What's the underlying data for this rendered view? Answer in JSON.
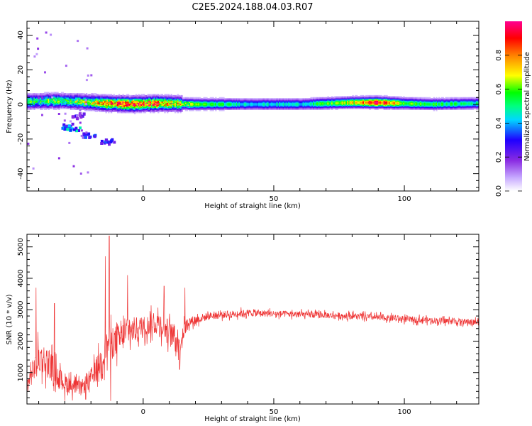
{
  "title": "C2E5.2024.188.04.03.R07",
  "chart_data": [
    {
      "type": "heatmap",
      "xlabel": "Height of straight line (km)",
      "ylabel": "Frequency (Hz)",
      "xlim": [
        -44.5,
        128.5
      ],
      "ylim": [
        -50,
        48
      ],
      "xticks": [
        0,
        50,
        100
      ],
      "yticks": [
        -40,
        -20,
        0,
        20,
        40
      ],
      "colorbar": {
        "label": "Normalized spectral amplitude",
        "range": [
          0,
          1
        ],
        "ticks": [
          "0.0",
          "0.2",
          "0.4",
          "0.6",
          "0.8"
        ],
        "colors": [
          "#ffffff",
          "#c6a8ff",
          "#8a2be2",
          "#1f00ff",
          "#00d8ff",
          "#00ff80",
          "#00ff00",
          "#ffff00",
          "#ff8000",
          "#ff0000",
          "#ff0090"
        ]
      },
      "band_profile": [
        {
          "x": -44,
          "center": 1.5,
          "amplitude": 0.5
        },
        {
          "x": -35,
          "center": 2,
          "amplitude": 0.55
        },
        {
          "x": -25,
          "center": 1.5,
          "amplitude": 0.55
        },
        {
          "x": -15,
          "center": 0.5,
          "amplitude": 0.7
        },
        {
          "x": -5,
          "center": 0,
          "amplitude": 0.85
        },
        {
          "x": 5,
          "center": 0.5,
          "amplitude": 0.8
        },
        {
          "x": 20,
          "center": 0,
          "amplitude": 0.6
        },
        {
          "x": 40,
          "center": 0,
          "amplitude": 0.45
        },
        {
          "x": 60,
          "center": 0,
          "amplitude": 0.45
        },
        {
          "x": 80,
          "center": 1,
          "amplitude": 0.7
        },
        {
          "x": 90,
          "center": 1,
          "amplitude": 0.95
        },
        {
          "x": 100,
          "center": 0.5,
          "amplitude": 0.6
        },
        {
          "x": 110,
          "center": 0,
          "amplitude": 0.55
        },
        {
          "x": 128,
          "center": 0.5,
          "amplitude": 0.5
        }
      ],
      "patches": [
        {
          "x": -30,
          "y": -12,
          "amplitude": 0.35
        },
        {
          "x": -27,
          "y": -13,
          "amplitude": 0.4
        },
        {
          "x": -21,
          "y": -17,
          "amplitude": 0.3
        },
        {
          "x": -14,
          "y": -21,
          "amplitude": 0.3
        },
        {
          "x": -25,
          "y": -6,
          "amplitude": 0.25
        }
      ]
    },
    {
      "type": "line",
      "xlabel": "Height of straight line (km)",
      "ylabel": "SNR (10 * v/v)",
      "xlim": [
        -44.5,
        128.5
      ],
      "ylim": [
        0,
        5400
      ],
      "xticks": [
        0,
        50,
        100
      ],
      "yticks": [
        1000,
        2000,
        3000,
        4000,
        5000
      ],
      "line_color": "#ee3333",
      "envelope": [
        {
          "x": -44,
          "mean": 700,
          "amp": 500
        },
        {
          "x": -40,
          "mean": 1500,
          "amp": 900
        },
        {
          "x": -36,
          "mean": 1300,
          "amp": 900
        },
        {
          "x": -32,
          "mean": 800,
          "amp": 600
        },
        {
          "x": -28,
          "mean": 600,
          "amp": 500
        },
        {
          "x": -24,
          "mean": 500,
          "amp": 400
        },
        {
          "x": -20,
          "mean": 800,
          "amp": 600
        },
        {
          "x": -16,
          "mean": 1400,
          "amp": 800
        },
        {
          "x": -13,
          "mean": 2000,
          "amp": 1000
        },
        {
          "x": -10,
          "mean": 2000,
          "amp": 900
        },
        {
          "x": -6,
          "mean": 2300,
          "amp": 800
        },
        {
          "x": -2,
          "mean": 2400,
          "amp": 700
        },
        {
          "x": 2,
          "mean": 2500,
          "amp": 600
        },
        {
          "x": 6,
          "mean": 2600,
          "amp": 700
        },
        {
          "x": 10,
          "mean": 2300,
          "amp": 700
        },
        {
          "x": 14,
          "mean": 2000,
          "amp": 700
        },
        {
          "x": 17,
          "mean": 2600,
          "amp": 300
        },
        {
          "x": 25,
          "mean": 2800,
          "amp": 220
        },
        {
          "x": 40,
          "mean": 2900,
          "amp": 200
        },
        {
          "x": 60,
          "mean": 2850,
          "amp": 180
        },
        {
          "x": 80,
          "mean": 2800,
          "amp": 180
        },
        {
          "x": 100,
          "mean": 2700,
          "amp": 180
        },
        {
          "x": 128,
          "mean": 2600,
          "amp": 180
        }
      ],
      "spikes": [
        {
          "x": -13,
          "y": 5350
        },
        {
          "x": -14.5,
          "y": 4700
        },
        {
          "x": -6,
          "y": 4100
        },
        {
          "x": 8,
          "y": 3750
        },
        {
          "x": 16,
          "y": 3700
        },
        {
          "x": -41,
          "y": 3700
        },
        {
          "x": -34,
          "y": 3200
        },
        {
          "x": -30,
          "y": 100
        },
        {
          "x": -22,
          "y": 150
        },
        {
          "x": -12.5,
          "y": 100
        },
        {
          "x": 14,
          "y": 1100
        }
      ]
    }
  ]
}
